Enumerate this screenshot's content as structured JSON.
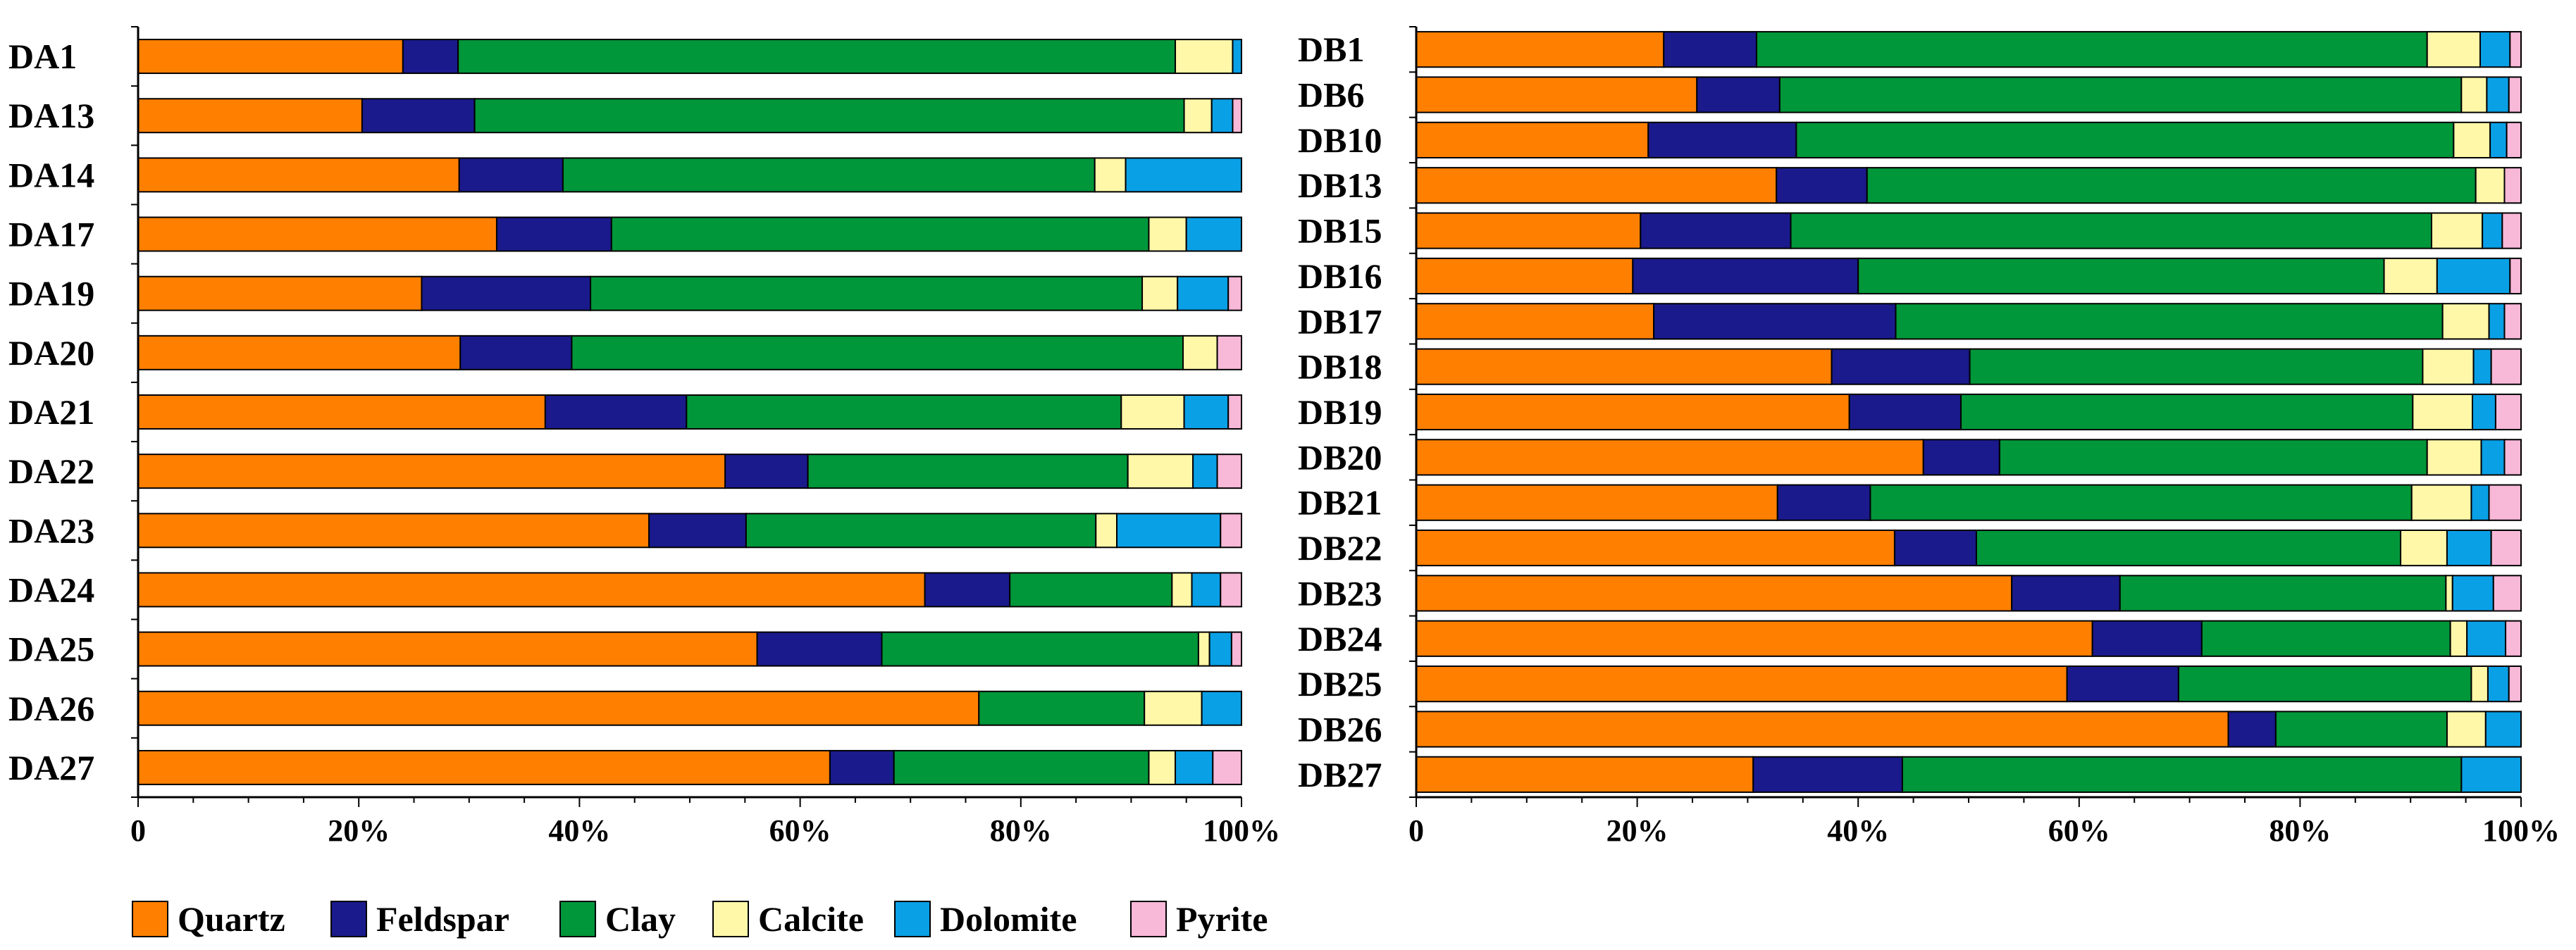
{
  "legend": {
    "items": [
      {
        "name": "Quartz",
        "color": "#FF8000"
      },
      {
        "name": "Feldspar",
        "color": "#1A1A8C"
      },
      {
        "name": "Clay",
        "color": "#00963A"
      },
      {
        "name": "Calcite",
        "color": "#FFF8A8"
      },
      {
        "name": "Dolomite",
        "color": "#0AA0E6"
      },
      {
        "name": "Pyrite",
        "color": "#F8B8D8"
      }
    ]
  },
  "chart_data": [
    {
      "type": "bar",
      "orientation": "horizontal",
      "stacked": true,
      "title": "",
      "xlabel": "",
      "ylabel": "",
      "xlim": [
        0,
        100
      ],
      "x_ticks": [
        "0",
        "20%",
        "40%",
        "60%",
        "80%",
        "100%"
      ],
      "categories": [
        "DA1",
        "DA13",
        "DA14",
        "DA17",
        "DA19",
        "DA20",
        "DA21",
        "DA22",
        "DA23",
        "DA24",
        "DA25",
        "DA26",
        "DA27"
      ],
      "series": [
        {
          "name": "Quartz",
          "values": [
            24,
            20.3,
            29.1,
            32.5,
            25.7,
            29.2,
            36.9,
            53.2,
            46.3,
            71.3,
            56.1,
            76.2,
            62.7
          ]
        },
        {
          "name": "Feldspar",
          "values": [
            5,
            10.2,
            9.4,
            10.4,
            15.3,
            10.1,
            12.8,
            7.5,
            8.8,
            7.7,
            11.3,
            0,
            5.8
          ]
        },
        {
          "name": "Clay",
          "values": [
            65,
            64.3,
            48.2,
            48.7,
            50,
            55.4,
            39.4,
            29,
            31.7,
            14.7,
            28.7,
            15,
            23.1
          ]
        },
        {
          "name": "Calcite",
          "values": [
            5.2,
            2.5,
            2.8,
            3.4,
            3.2,
            3.1,
            5.7,
            5.9,
            1.9,
            1.8,
            1,
            5.2,
            2.4
          ]
        },
        {
          "name": "Dolomite",
          "values": [
            0.8,
            1.9,
            10.5,
            5,
            4.6,
            0,
            4,
            2.2,
            9.4,
            2.6,
            2,
            3.6,
            3.4
          ]
        },
        {
          "name": "Pyrite",
          "values": [
            0,
            0.8,
            0,
            0,
            1.2,
            2.2,
            1.2,
            2.2,
            1.9,
            1.9,
            0.9,
            0,
            2.6
          ]
        }
      ]
    },
    {
      "type": "bar",
      "orientation": "horizontal",
      "stacked": true,
      "title": "",
      "xlabel": "",
      "ylabel": "",
      "xlim": [
        0,
        100
      ],
      "x_ticks": [
        "0",
        "20%",
        "40%",
        "60%",
        "80%",
        "100%"
      ],
      "categories": [
        "DB1",
        "DB6",
        "DB10",
        "DB13",
        "DB15",
        "DB16",
        "DB17",
        "DB18",
        "DB19",
        "DB20",
        "DB21",
        "DB22",
        "DB23",
        "DB24",
        "DB25",
        "DB26",
        "DB27"
      ],
      "series": [
        {
          "name": "Quartz",
          "values": [
            22.4,
            25.4,
            21,
            32.6,
            20.3,
            19.6,
            21.5,
            37.6,
            39.2,
            45.9,
            32.7,
            43.3,
            53.9,
            61.2,
            58.9,
            73.5,
            30.5
          ]
        },
        {
          "name": "Feldspar",
          "values": [
            8.4,
            7.5,
            13.4,
            8.2,
            13.6,
            20.4,
            21.9,
            12.5,
            10.1,
            6.9,
            8.4,
            7.4,
            9.8,
            9.9,
            10.1,
            4.3,
            13.5
          ]
        },
        {
          "name": "Clay",
          "values": [
            60.7,
            61.7,
            59.5,
            55.1,
            58,
            47.6,
            49.5,
            41,
            40.9,
            38.7,
            49,
            38.4,
            29.5,
            22.5,
            26.5,
            15.5,
            50.6
          ]
        },
        {
          "name": "Calcite",
          "values": [
            4.8,
            2.3,
            3.3,
            2.6,
            4.6,
            4.8,
            4.2,
            4.6,
            5.4,
            4.9,
            5.4,
            4.2,
            0.6,
            1.5,
            1.5,
            3.5,
            0
          ]
        },
        {
          "name": "Dolomite",
          "values": [
            2.7,
            2,
            1.5,
            0,
            1.8,
            6.6,
            1.4,
            1.6,
            2.1,
            2.1,
            1.6,
            4,
            3.7,
            3.5,
            1.9,
            3.2,
            5.4
          ]
        },
        {
          "name": "Pyrite",
          "values": [
            1,
            1.1,
            1.3,
            1.5,
            1.7,
            1,
            1.5,
            2.7,
            2.3,
            1.5,
            2.9,
            2.7,
            2.5,
            1.4,
            1.1,
            0,
            0
          ]
        }
      ]
    }
  ]
}
